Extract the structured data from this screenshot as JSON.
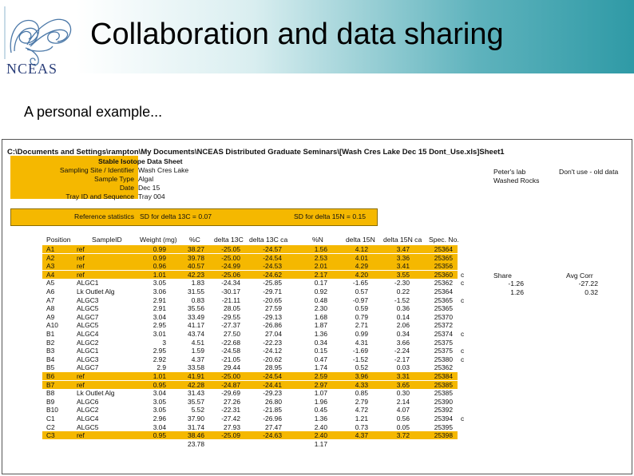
{
  "header": {
    "title": "Collaboration and data sharing",
    "logo_text": "NCEAS"
  },
  "subtitle": "A personal example...",
  "sheet": {
    "path": "C:\\Documents and Settings\\rampton\\My Documents\\NCEAS Distributed Graduate Seminars\\[Wash Cres Lake Dec 15 Dont_Use.xls]Sheet1",
    "meta_title": "Stable Isotope Data Sheet",
    "meta": [
      {
        "label": "Sampling Site / Identifier",
        "value": "Wash Cres Lake"
      },
      {
        "label": "Sample Type",
        "value": "Algal"
      },
      {
        "label": "Date",
        "value": "Dec 15"
      },
      {
        "label": "Tray ID and Sequence",
        "value": "Tray 004"
      }
    ],
    "notes": [
      "Peter's lab",
      "Washed Rocks"
    ],
    "warning": "Don't use - old data",
    "ref_label": "Reference statistics",
    "ref_c": "SD for delta 13C = 0.07",
    "ref_n": "SD for delta 15N = 0.15",
    "columns": [
      "Position",
      "SampleID",
      "Weight (mg)",
      "%C",
      "delta 13C",
      "delta 13C ca",
      "%N",
      "delta 15N",
      "delta 15N ca",
      "Spec. No."
    ],
    "rows": [
      {
        "pos": "A1",
        "id": "ref",
        "w": "0.99",
        "pc": "38.27",
        "d13": "-25.05",
        "d13c": "-24.57",
        "pn": "1.56",
        "d15": "4.12",
        "d15c": "3.47",
        "spec": "25364",
        "flag": "",
        "hl": true
      },
      {
        "pos": "A2",
        "id": "ref",
        "w": "0.99",
        "pc": "39.78",
        "d13": "-25.00",
        "d13c": "-24.54",
        "pn": "2.53",
        "d15": "4.01",
        "d15c": "3.36",
        "spec": "25365",
        "flag": "",
        "hl": true
      },
      {
        "pos": "A3",
        "id": "ref",
        "w": "0.96",
        "pc": "40.57",
        "d13": "-24.99",
        "d13c": "-24.53",
        "pn": "2.01",
        "d15": "4.29",
        "d15c": "3.41",
        "spec": "25356",
        "flag": "",
        "hl": true
      },
      {
        "pos": "A4",
        "id": "ref",
        "w": "1.01",
        "pc": "42.23",
        "d13": "-25.06",
        "d13c": "-24.62",
        "pn": "2.17",
        "d15": "4.20",
        "d15c": "3.55",
        "spec": "25360",
        "flag": "c",
        "hl": true
      },
      {
        "pos": "A5",
        "id": "ALGC1",
        "w": "3.05",
        "pc": "1.83",
        "d13": "-24.34",
        "d13c": "-25.85",
        "pn": "0.17",
        "d15": "-1.65",
        "d15c": "-2.30",
        "spec": "25362",
        "flag": "c",
        "hl": false
      },
      {
        "pos": "A6",
        "id": "Lk Outlet Alg",
        "w": "3.06",
        "pc": "31.55",
        "d13": "-30.17",
        "d13c": "-29.71",
        "pn": "0.92",
        "d15": "0.57",
        "d15c": "0.22",
        "spec": "25364",
        "flag": "",
        "hl": false
      },
      {
        "pos": "A7",
        "id": "ALGC3",
        "w": "2.91",
        "pc": "0.83",
        "d13": "-21.11",
        "d13c": "-20.65",
        "pn": "0.48",
        "d15": "-0.97",
        "d15c": "-1.52",
        "spec": "25365",
        "flag": "c",
        "hl": false
      },
      {
        "pos": "A8",
        "id": "ALGC5",
        "w": "2.91",
        "pc": "35.56",
        "d13": "28.05",
        "d13c": "27.59",
        "pn": "2.30",
        "d15": "0.59",
        "d15c": "0.36",
        "spec": "25365",
        "flag": "",
        "hl": false
      },
      {
        "pos": "A9",
        "id": "ALGC7",
        "w": "3.04",
        "pc": "33.49",
        "d13": "-29.55",
        "d13c": "-29.13",
        "pn": "1.68",
        "d15": "0.79",
        "d15c": "0.14",
        "spec": "25370",
        "flag": "",
        "hl": false
      },
      {
        "pos": "A10",
        "id": "ALGC5",
        "w": "2.95",
        "pc": "41.17",
        "d13": "-27.37",
        "d13c": "-26.86",
        "pn": "1.87",
        "d15": "2.71",
        "d15c": "2.06",
        "spec": "25372",
        "flag": "",
        "hl": false
      },
      {
        "pos": "B1",
        "id": "ALGC4",
        "w": "3.01",
        "pc": "43.74",
        "d13": "27.50",
        "d13c": "27.04",
        "pn": "1.36",
        "d15": "0.99",
        "d15c": "0.34",
        "spec": "25374",
        "flag": "c",
        "hl": false
      },
      {
        "pos": "B2",
        "id": "ALGC2",
        "w": "3",
        "pc": "4.51",
        "d13": "-22.68",
        "d13c": "-22.23",
        "pn": "0.34",
        "d15": "4.31",
        "d15c": "3.66",
        "spec": "25375",
        "flag": "",
        "hl": false
      },
      {
        "pos": "B3",
        "id": "ALGC1",
        "w": "2.95",
        "pc": "1.59",
        "d13": "-24.58",
        "d13c": "-24.12",
        "pn": "0.15",
        "d15": "-1.69",
        "d15c": "-2.24",
        "spec": "25375",
        "flag": "c",
        "hl": false
      },
      {
        "pos": "B4",
        "id": "ALGC3",
        "w": "2.92",
        "pc": "4.37",
        "d13": "-21.05",
        "d13c": "-20.62",
        "pn": "0.47",
        "d15": "-1.52",
        "d15c": "-2.17",
        "spec": "25380",
        "flag": "c",
        "hl": false
      },
      {
        "pos": "B5",
        "id": "ALGC7",
        "w": "2.9",
        "pc": "33.58",
        "d13": "29.44",
        "d13c": "28.95",
        "pn": "1.74",
        "d15": "0.52",
        "d15c": "0.03",
        "spec": "25362",
        "flag": "",
        "hl": false
      },
      {
        "pos": "B6",
        "id": "ref",
        "w": "1.01",
        "pc": "41.91",
        "d13": "-25.00",
        "d13c": "-24.54",
        "pn": "2.59",
        "d15": "3.96",
        "d15c": "3.31",
        "spec": "25384",
        "flag": "",
        "hl": true
      },
      {
        "pos": "B7",
        "id": "ref",
        "w": "0.95",
        "pc": "42.28",
        "d13": "-24.87",
        "d13c": "-24.41",
        "pn": "2.97",
        "d15": "4.33",
        "d15c": "3.65",
        "spec": "25385",
        "flag": "",
        "hl": true
      },
      {
        "pos": "B8",
        "id": "Lk Outlet Alg",
        "w": "3.04",
        "pc": "31.43",
        "d13": "-29.69",
        "d13c": "-29.23",
        "pn": "1.07",
        "d15": "0.85",
        "d15c": "0.30",
        "spec": "25385",
        "flag": "",
        "hl": false
      },
      {
        "pos": "B9",
        "id": "ALGC6",
        "w": "3.05",
        "pc": "35.57",
        "d13": "27.26",
        "d13c": "26.80",
        "pn": "1.96",
        "d15": "2.79",
        "d15c": "2.14",
        "spec": "25390",
        "flag": "",
        "hl": false
      },
      {
        "pos": "B10",
        "id": "ALGC2",
        "w": "3.05",
        "pc": "5.52",
        "d13": "-22.31",
        "d13c": "-21.85",
        "pn": "0.45",
        "d15": "4.72",
        "d15c": "4.07",
        "spec": "25392",
        "flag": "",
        "hl": false
      },
      {
        "pos": "C1",
        "id": "ALGC4",
        "w": "2.96",
        "pc": "37.90",
        "d13": "-27.42",
        "d13c": "-26.96",
        "pn": "1.36",
        "d15": "1.21",
        "d15c": "0.56",
        "spec": "25394",
        "flag": "c",
        "hl": false
      },
      {
        "pos": "C2",
        "id": "ALGC5",
        "w": "3.04",
        "pc": "31.74",
        "d13": "27.93",
        "d13c": "27.47",
        "pn": "2.40",
        "d15": "0.73",
        "d15c": "0.05",
        "spec": "25395",
        "flag": "",
        "hl": false
      },
      {
        "pos": "C3",
        "id": "ref",
        "w": "0.95",
        "pc": "38.46",
        "d13": "-25.09",
        "d13c": "-24.63",
        "pn": "2.40",
        "d15": "4.37",
        "d15c": "3.72",
        "spec": "25398",
        "flag": "",
        "hl": true
      }
    ],
    "totals": {
      "pc": "23.78",
      "pn": "1.17"
    },
    "side_header": {
      "a": "Share",
      "b": "Avg Corr"
    },
    "side_rows": [
      {
        "a": "-1.26",
        "b": "-27.22"
      },
      {
        "a": "1.26",
        "b": "0.32"
      }
    ]
  }
}
